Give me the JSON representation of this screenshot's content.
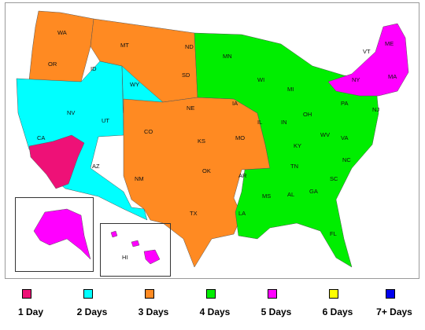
{
  "legend": [
    {
      "label": "1 Day",
      "color": "#ee1177"
    },
    {
      "label": "2 Days",
      "color": "#00ffff"
    },
    {
      "label": "3 Days",
      "color": "#ff8a22"
    },
    {
      "label": "4 Days",
      "color": "#00ee00"
    },
    {
      "label": "5 Days",
      "color": "#ff00ff"
    },
    {
      "label": "6 Days",
      "color": "#ffff00"
    },
    {
      "label": "7+ Days",
      "color": "#0000ee"
    }
  ],
  "states": {
    "WA": "WA",
    "OR": "OR",
    "CA": "CA",
    "NV": "NV",
    "ID": "ID",
    "MT": "MT",
    "WY": "WY",
    "UT": "UT",
    "AZ": "AZ",
    "CO": "CO",
    "NM": "NM",
    "ND": "ND",
    "SD": "SD",
    "NE": "NE",
    "KS": "KS",
    "OK": "OK",
    "TX": "TX",
    "MN": "MN",
    "IA": "IA",
    "MO": "MO",
    "AR": "AR",
    "LA": "LA",
    "WI": "WI",
    "IL": "IL",
    "MI": "MI",
    "IN": "IN",
    "OH": "OH",
    "KY": "KY",
    "TN": "TN",
    "MS": "MS",
    "AL": "AL",
    "GA": "GA",
    "FL": "FL",
    "SC": "SC",
    "NC": "NC",
    "VA": "VA",
    "WV": "WV",
    "PA": "PA",
    "NY": "NY",
    "NJ": "NJ",
    "VT": "VT",
    "ME": "ME",
    "MA": "MA",
    "HI": "HI"
  }
}
